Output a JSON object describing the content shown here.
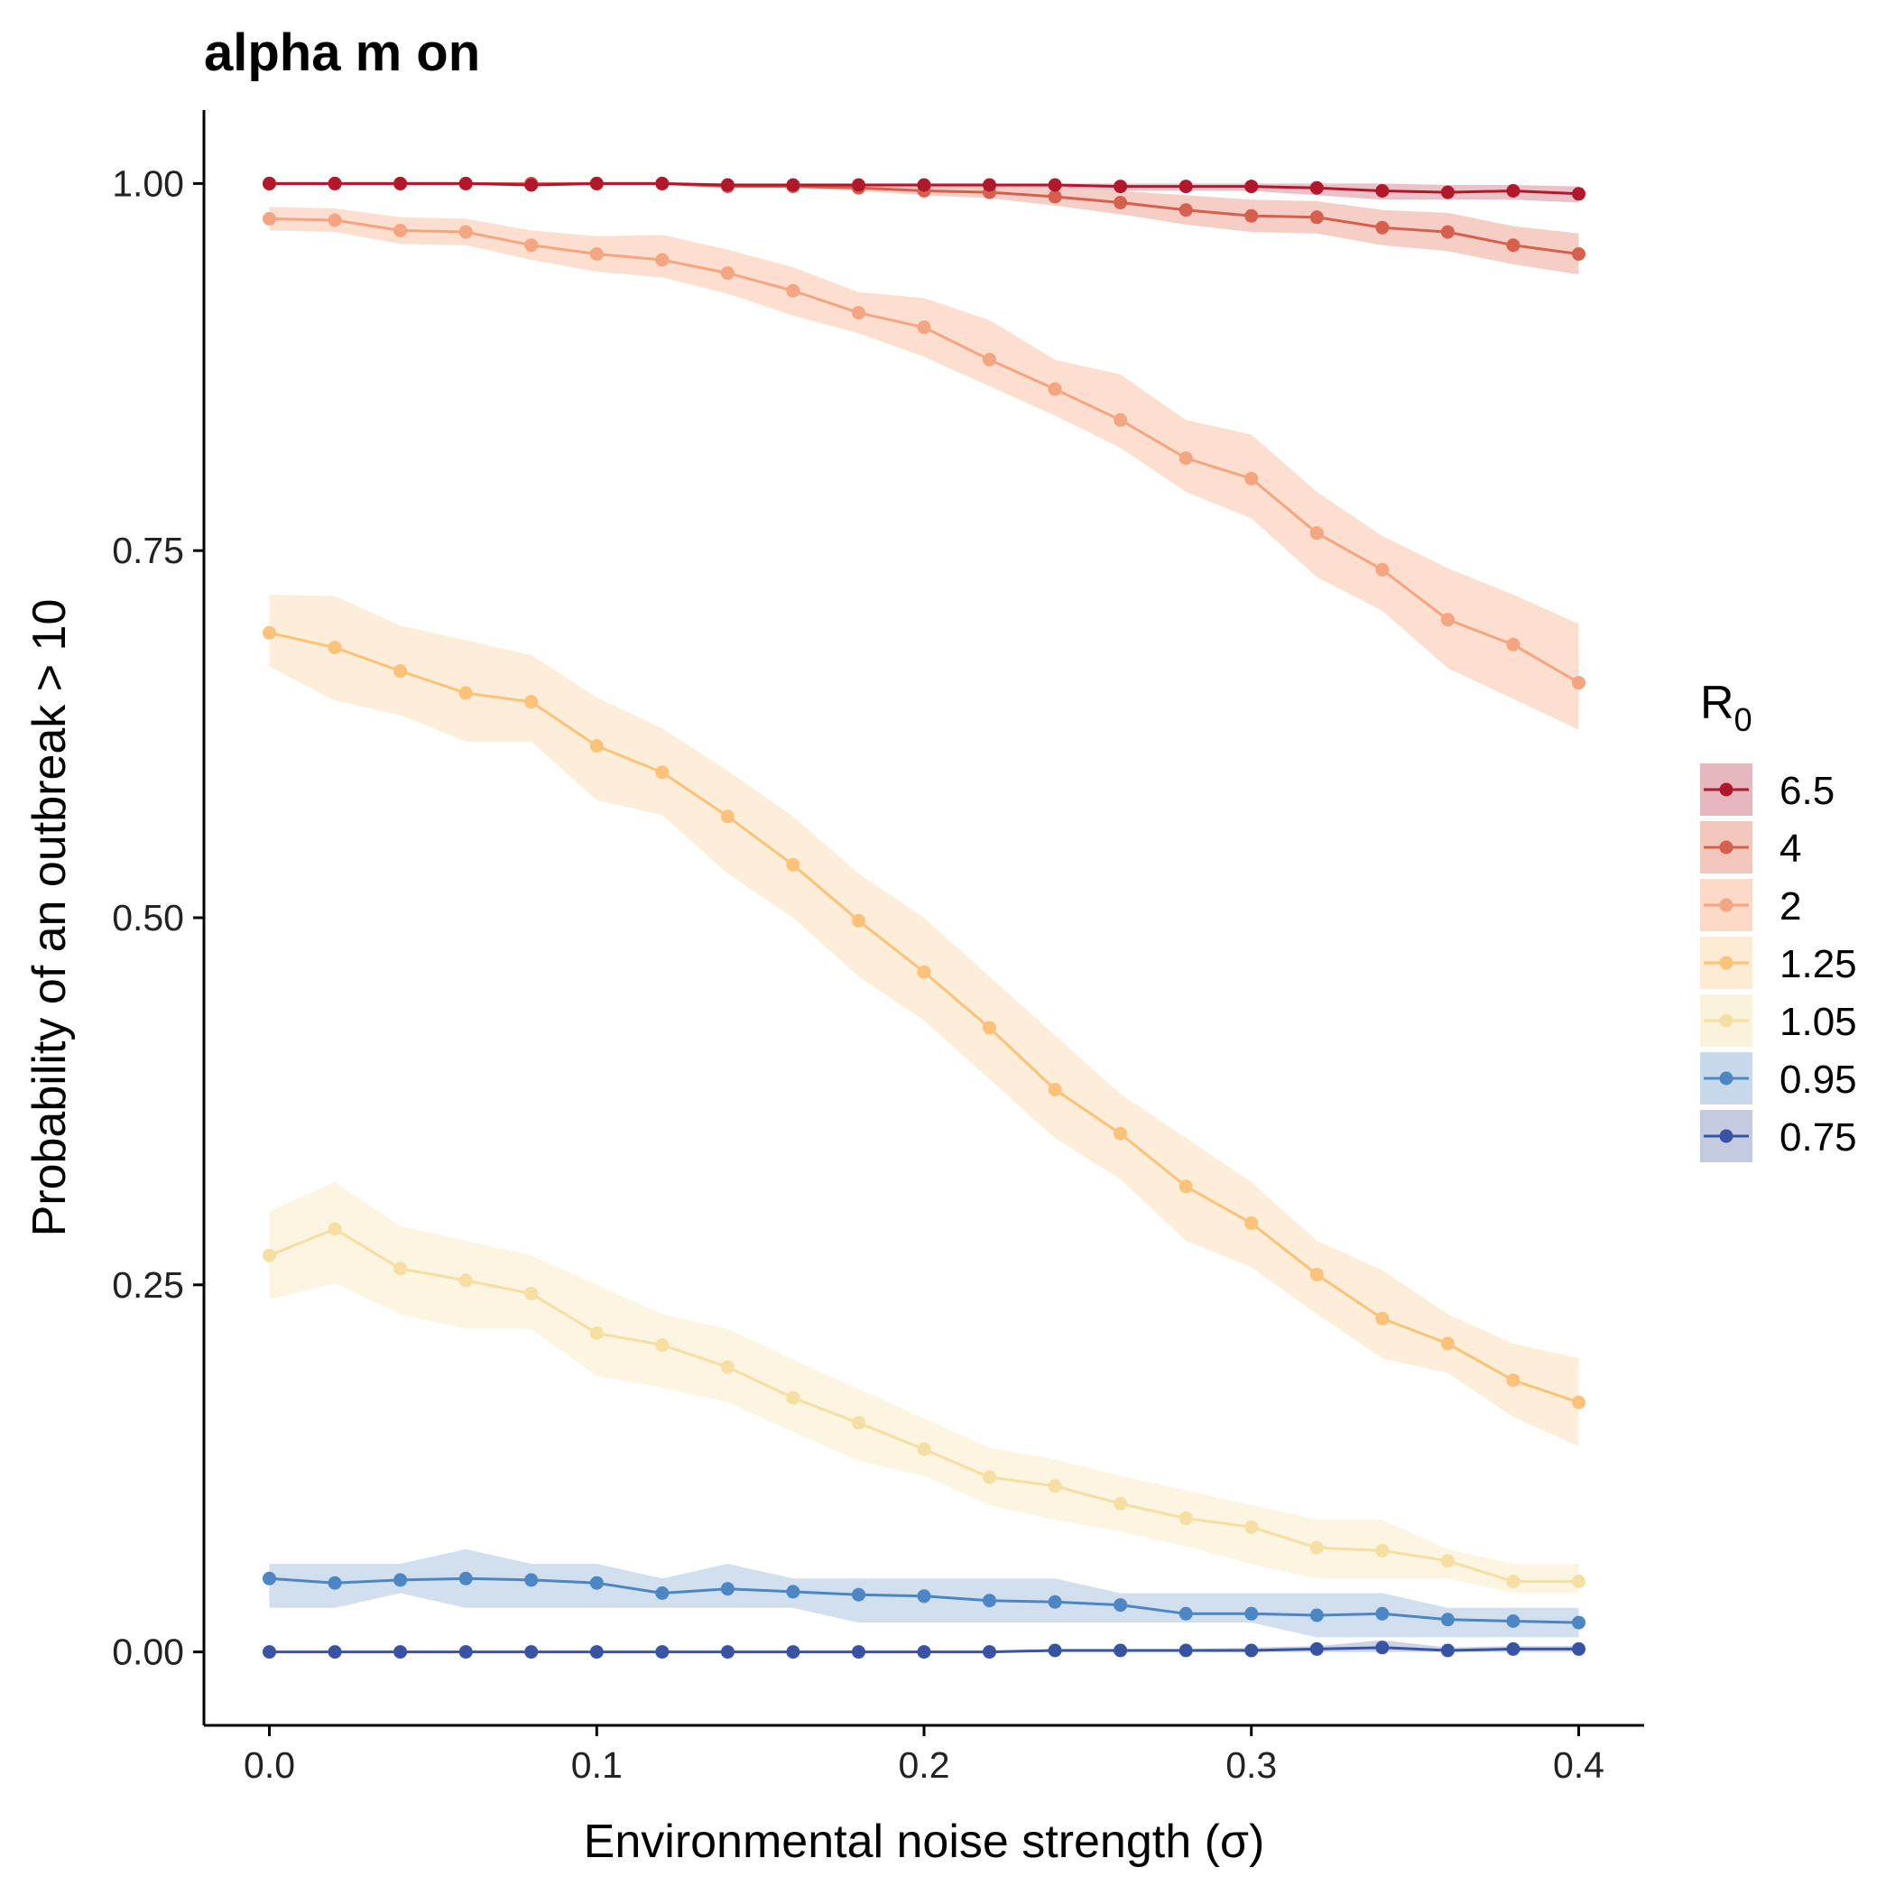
{
  "chart_data": {
    "type": "line",
    "title": "alpha m on",
    "xlabel": "Environmental noise strength (σ)",
    "ylabel": "Probability of an outbreak > 10",
    "xlim": [
      -0.02,
      0.42
    ],
    "ylim": [
      -0.05,
      1.05
    ],
    "xticks": [
      0.0,
      0.1,
      0.2,
      0.3,
      0.4
    ],
    "xtick_labels": [
      "0.0",
      "0.1",
      "0.2",
      "0.3",
      "0.4"
    ],
    "yticks": [
      0.0,
      0.25,
      0.5,
      0.75,
      1.0
    ],
    "ytick_labels": [
      "0.00",
      "0.25",
      "0.50",
      "0.75",
      "1.00"
    ],
    "grid": false,
    "legend": {
      "title_main": "R",
      "title_sub": "0",
      "placement": "right"
    },
    "x": [
      0.0,
      0.02,
      0.04,
      0.06,
      0.08,
      0.1,
      0.12,
      0.14,
      0.16,
      0.18,
      0.2,
      0.22,
      0.24,
      0.26,
      0.28,
      0.3,
      0.32,
      0.34,
      0.36,
      0.38,
      0.4
    ],
    "series": [
      {
        "name": "6.5",
        "color": "#b2182b",
        "band_color": "#e8b6bf",
        "values": [
          1.0,
          1.0,
          1.0,
          1.0,
          0.999,
          1.0,
          1.0,
          0.999,
          0.999,
          0.999,
          0.999,
          0.999,
          0.999,
          0.998,
          0.998,
          0.998,
          0.997,
          0.995,
          0.994,
          0.995,
          0.993
        ],
        "lower": [
          1.0,
          1.0,
          1.0,
          1.0,
          0.998,
          0.999,
          0.999,
          0.998,
          0.998,
          0.997,
          0.997,
          0.997,
          0.997,
          0.995,
          0.995,
          0.995,
          0.992,
          0.989,
          0.989,
          0.989,
          0.987
        ],
        "upper": [
          1.0,
          1.0,
          1.0,
          1.0,
          1.0,
          1.0,
          1.0,
          1.0,
          1.0,
          1.0,
          1.0,
          1.0,
          1.0,
          1.0,
          1.0,
          1.0,
          1.0,
          1.0,
          0.999,
          0.999,
          0.998
        ]
      },
      {
        "name": "4",
        "color": "#d6604d",
        "band_color": "#f3c6bc",
        "values": [
          1.0,
          1.0,
          1.0,
          1.0,
          1.0,
          1.0,
          1.0,
          0.998,
          0.998,
          0.997,
          0.995,
          0.994,
          0.991,
          0.987,
          0.982,
          0.978,
          0.977,
          0.97,
          0.967,
          0.958,
          0.952
        ],
        "lower": [
          0.999,
          0.999,
          0.999,
          0.999,
          0.999,
          0.999,
          0.999,
          0.997,
          0.997,
          0.995,
          0.992,
          0.99,
          0.985,
          0.979,
          0.972,
          0.967,
          0.966,
          0.958,
          0.954,
          0.945,
          0.938
        ],
        "upper": [
          1.0,
          1.0,
          1.0,
          1.0,
          1.0,
          1.0,
          1.0,
          1.0,
          1.0,
          1.0,
          1.0,
          1.0,
          0.997,
          0.995,
          0.992,
          0.989,
          0.988,
          0.982,
          0.98,
          0.971,
          0.966
        ]
      },
      {
        "name": "2",
        "color": "#f4a582",
        "band_color": "#fdd9c7",
        "values": [
          0.976,
          0.975,
          0.968,
          0.967,
          0.958,
          0.952,
          0.948,
          0.939,
          0.927,
          0.912,
          0.902,
          0.88,
          0.86,
          0.839,
          0.813,
          0.799,
          0.762,
          0.737,
          0.703,
          0.686,
          0.66
        ],
        "lower": [
          0.968,
          0.967,
          0.959,
          0.958,
          0.948,
          0.94,
          0.936,
          0.925,
          0.91,
          0.898,
          0.882,
          0.862,
          0.842,
          0.82,
          0.79,
          0.772,
          0.732,
          0.709,
          0.67,
          0.649,
          0.628
        ],
        "upper": [
          0.984,
          0.983,
          0.977,
          0.976,
          0.968,
          0.964,
          0.965,
          0.955,
          0.943,
          0.926,
          0.922,
          0.907,
          0.88,
          0.87,
          0.839,
          0.829,
          0.79,
          0.76,
          0.738,
          0.72,
          0.7
        ]
      },
      {
        "name": "1.25",
        "color": "#fdc27a",
        "band_color": "#fdebd3",
        "values": [
          0.694,
          0.684,
          0.668,
          0.653,
          0.647,
          0.617,
          0.599,
          0.569,
          0.536,
          0.498,
          0.463,
          0.425,
          0.383,
          0.353,
          0.317,
          0.292,
          0.257,
          0.227,
          0.21,
          0.185,
          0.17
        ],
        "lower": [
          0.671,
          0.648,
          0.638,
          0.62,
          0.62,
          0.58,
          0.57,
          0.53,
          0.5,
          0.46,
          0.43,
          0.39,
          0.35,
          0.322,
          0.28,
          0.262,
          0.23,
          0.2,
          0.19,
          0.16,
          0.14
        ],
        "upper": [
          0.72,
          0.719,
          0.699,
          0.689,
          0.679,
          0.65,
          0.629,
          0.6,
          0.569,
          0.53,
          0.5,
          0.46,
          0.42,
          0.38,
          0.35,
          0.32,
          0.28,
          0.26,
          0.23,
          0.21,
          0.2
        ]
      },
      {
        "name": "1.05",
        "color": "#f5dfa2",
        "band_color": "#faf3dc",
        "values": [
          0.27,
          0.288,
          0.261,
          0.253,
          0.244,
          0.217,
          0.209,
          0.194,
          0.173,
          0.156,
          0.138,
          0.119,
          0.113,
          0.101,
          0.091,
          0.085,
          0.071,
          0.069,
          0.062,
          0.048,
          0.048
        ],
        "lower": [
          0.24,
          0.251,
          0.23,
          0.22,
          0.22,
          0.188,
          0.18,
          0.17,
          0.15,
          0.13,
          0.12,
          0.1,
          0.09,
          0.082,
          0.072,
          0.06,
          0.05,
          0.05,
          0.05,
          0.04,
          0.04
        ],
        "upper": [
          0.3,
          0.32,
          0.29,
          0.28,
          0.27,
          0.25,
          0.23,
          0.22,
          0.199,
          0.179,
          0.159,
          0.139,
          0.131,
          0.12,
          0.11,
          0.1,
          0.09,
          0.09,
          0.07,
          0.06,
          0.06
        ]
      },
      {
        "name": "0.95",
        "color": "#4d86c4",
        "band_color": "#c9d9ec",
        "values": [
          0.05,
          0.047,
          0.049,
          0.05,
          0.049,
          0.047,
          0.04,
          0.043,
          0.041,
          0.039,
          0.038,
          0.035,
          0.034,
          0.032,
          0.026,
          0.026,
          0.025,
          0.026,
          0.022,
          0.021,
          0.02
        ],
        "lower": [
          0.03,
          0.03,
          0.04,
          0.03,
          0.03,
          0.03,
          0.03,
          0.03,
          0.03,
          0.02,
          0.02,
          0.02,
          0.02,
          0.02,
          0.02,
          0.02,
          0.01,
          0.01,
          0.01,
          0.01,
          0.01
        ],
        "upper": [
          0.06,
          0.06,
          0.06,
          0.07,
          0.06,
          0.06,
          0.05,
          0.06,
          0.05,
          0.05,
          0.05,
          0.05,
          0.05,
          0.04,
          0.04,
          0.04,
          0.04,
          0.04,
          0.03,
          0.03,
          0.03
        ]
      },
      {
        "name": "0.75",
        "color": "#3953a4",
        "band_color": "#c4cbe0",
        "values": [
          0.0,
          0.0,
          0.0,
          0.0,
          0.0,
          0.0,
          0.0,
          0.0,
          0.0,
          0.0,
          0.0,
          0.0,
          0.001,
          0.001,
          0.001,
          0.001,
          0.002,
          0.003,
          0.001,
          0.002,
          0.002
        ],
        "lower": [
          0.0,
          0.0,
          0.0,
          0.0,
          0.0,
          0.0,
          0.0,
          0.0,
          0.0,
          0.0,
          0.0,
          0.0,
          0.0,
          0.0,
          0.0,
          0.0,
          0.0,
          0.0,
          0.0,
          0.0,
          0.0
        ],
        "upper": [
          0.0,
          0.0,
          0.0,
          0.0,
          0.0,
          0.0,
          0.0,
          0.0,
          0.0,
          0.0,
          0.0,
          0.0,
          0.002,
          0.002,
          0.002,
          0.003,
          0.004,
          0.008,
          0.003,
          0.004,
          0.004
        ]
      }
    ]
  }
}
